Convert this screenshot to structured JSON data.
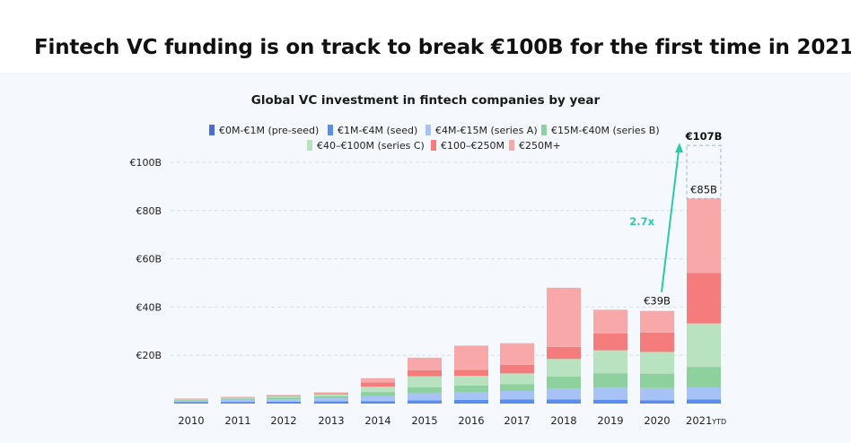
{
  "headline": "Fintech VC funding is on track to break €100B for the first time in 2021.",
  "chart_data": {
    "type": "bar",
    "stacked": true,
    "title": "Global VC investment in fintech companies by year",
    "categories": [
      "2010",
      "2011",
      "2012",
      "2013",
      "2014",
      "2015",
      "2016",
      "2017",
      "2018",
      "2019",
      "2020",
      "2021"
    ],
    "category_suffix": {
      "2021": "YTD"
    },
    "ylim": [
      0,
      100
    ],
    "yticks": [
      {
        "value": 20,
        "label": "€20B"
      },
      {
        "value": 40,
        "label": "€40B"
      },
      {
        "value": 60,
        "label": "€60B"
      },
      {
        "value": 80,
        "label": "€80B"
      },
      {
        "value": 100,
        "label": "€100B"
      }
    ],
    "grid": true,
    "legend_position": "top",
    "series": [
      {
        "name": "€0M-€1M  (pre-seed)",
        "color": "#4a6ed6",
        "values": [
          0.2,
          0.2,
          0.2,
          0.2,
          0.2,
          0.3,
          0.3,
          0.3,
          0.3,
          0.3,
          0.3,
          0.3
        ]
      },
      {
        "name": "€1M-€4M (seed)",
        "color": "#5b8def",
        "values": [
          0.4,
          0.5,
          0.6,
          0.7,
          0.8,
          1.0,
          1.2,
          1.4,
          1.4,
          1.3,
          1.1,
          1.4
        ]
      },
      {
        "name": "€4M-€15M (series A)",
        "color": "#a7c2f5",
        "values": [
          0.6,
          0.8,
          1.0,
          1.3,
          2.0,
          3.0,
          3.2,
          3.5,
          4.5,
          5.0,
          5.0,
          5.0
        ]
      },
      {
        "name": "€15M-€40M (series B)",
        "color": "#8fd19e",
        "values": [
          0.4,
          0.6,
          0.7,
          0.9,
          1.8,
          2.5,
          2.8,
          2.8,
          5.0,
          6.0,
          6.0,
          8.5
        ]
      },
      {
        "name": "€40–€100M (series C)",
        "color": "#b8e2c0",
        "values": [
          0.3,
          0.4,
          0.6,
          0.8,
          2.2,
          4.5,
          4.0,
          4.5,
          7.3,
          9.5,
          9.0,
          18.0
        ]
      },
      {
        "name": "€100–€250M",
        "color": "#f47c7c",
        "values": [
          0.1,
          0.2,
          0.3,
          0.4,
          1.8,
          2.5,
          2.5,
          3.5,
          5.0,
          7.0,
          8.0,
          21.0
        ]
      },
      {
        "name": "€250M+",
        "color": "#f8a8a8",
        "values": [
          0.0,
          0.1,
          0.2,
          0.3,
          1.7,
          5.2,
          10.0,
          9.0,
          24.5,
          9.8,
          9.0,
          30.8
        ]
      }
    ],
    "annotations": {
      "label_2020": "€39B",
      "label_2021_ytd": "€85B",
      "label_2021_projected": "€107B",
      "projected_total_2021": 107,
      "growth_label": "2.7x",
      "growth_color": "#2bcaa8"
    }
  }
}
